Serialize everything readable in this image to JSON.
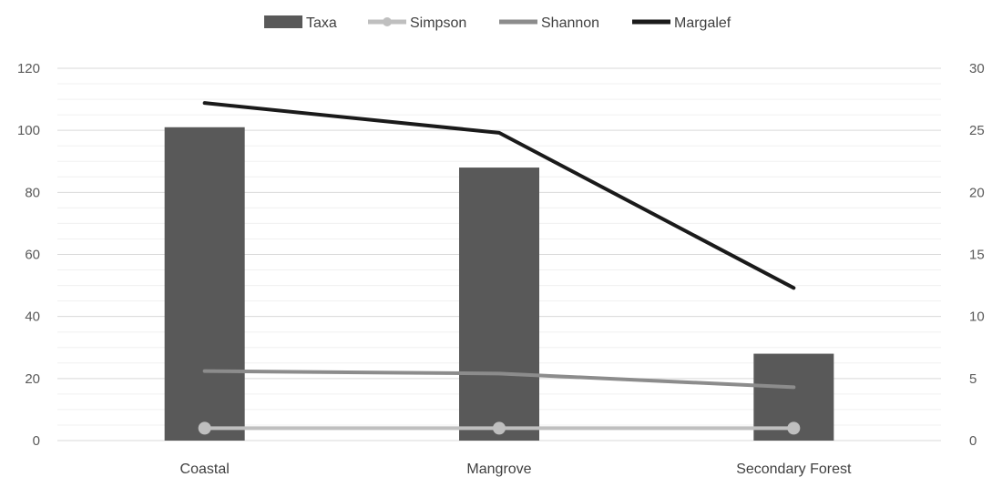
{
  "chart_data": {
    "type": "bar",
    "categories": [
      "Coastal",
      "Mangrove",
      "Secondary Forest"
    ],
    "series": [
      {
        "name": "Taxa",
        "type": "bar",
        "axis": "left",
        "values": [
          101,
          88,
          28
        ],
        "color": "#595959"
      },
      {
        "name": "Simpson",
        "type": "line",
        "axis": "right",
        "values": [
          1,
          1,
          1
        ],
        "color": "#bfbfbf",
        "marker": "circle"
      },
      {
        "name": "Shannon",
        "type": "line",
        "axis": "right",
        "values": [
          5.6,
          5.4,
          4.3
        ],
        "color": "#8c8c8c"
      },
      {
        "name": "Margalef",
        "type": "line",
        "axis": "right",
        "values": [
          27.2,
          24.8,
          12.3
        ],
        "color": "#1a1a1a"
      }
    ],
    "y_left": {
      "ylim": [
        0,
        120
      ],
      "ticks": [
        "0",
        "20",
        "40",
        "60",
        "80",
        "100",
        "120"
      ]
    },
    "y_right": {
      "ylim": [
        0,
        30
      ],
      "ticks": [
        "0",
        "5",
        "10",
        "15",
        "20",
        "25",
        "30"
      ]
    },
    "grid": true,
    "legend": "top-center"
  }
}
